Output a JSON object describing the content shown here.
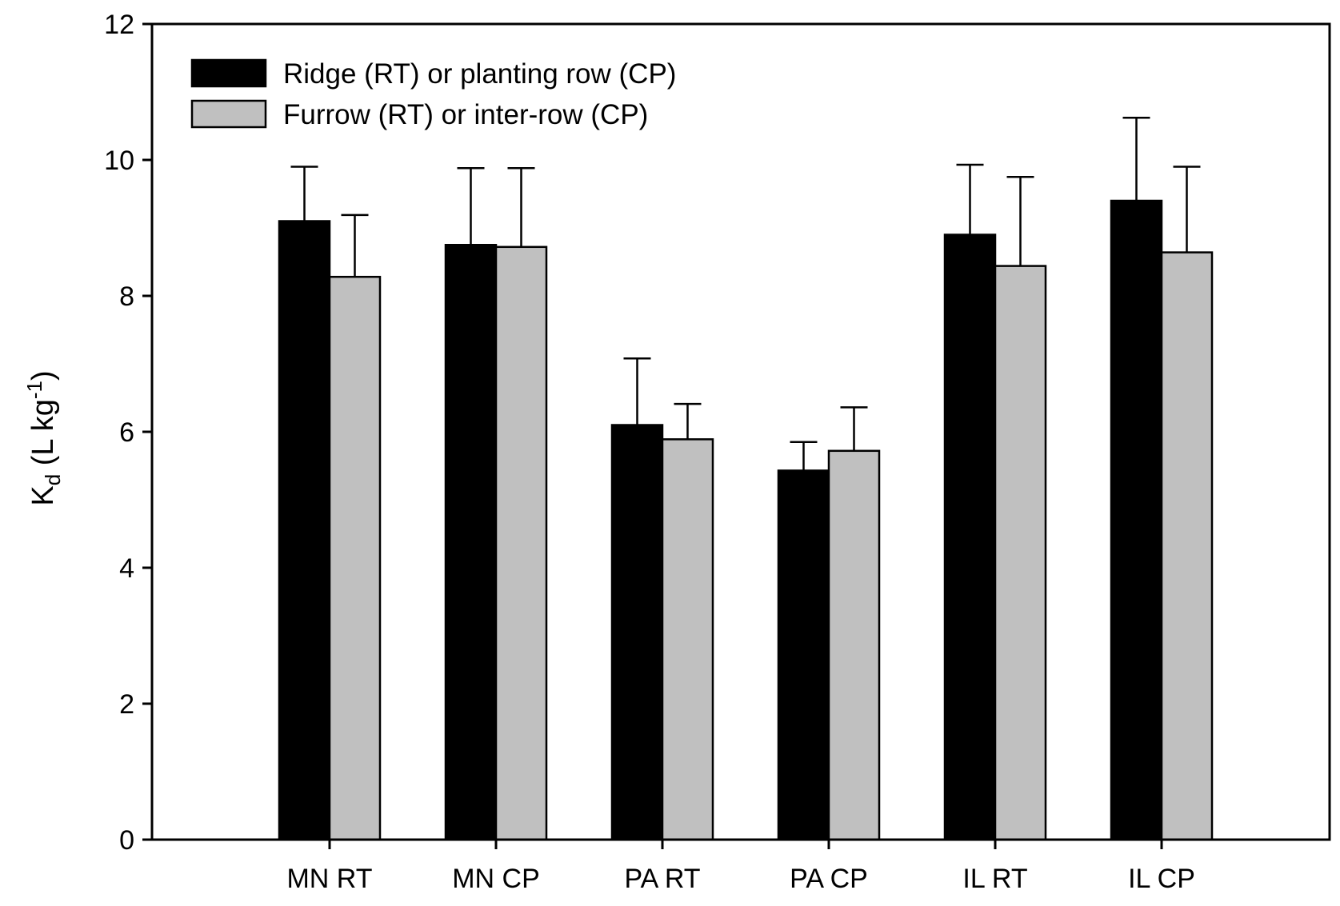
{
  "chart_data": {
    "type": "bar",
    "title": "",
    "xlabel": "",
    "ylabel": {
      "main": "K",
      "subscript": "d",
      "unit_prefix": " (L kg",
      "superscript": "-1",
      "unit_suffix": ")"
    },
    "ylim": [
      0,
      12
    ],
    "yticks": [
      0,
      2,
      4,
      6,
      8,
      10,
      12
    ],
    "categories": [
      "MN RT",
      "MN CP",
      "PA RT",
      "PA CP",
      "IL RT",
      "IL CP"
    ],
    "series": [
      {
        "name": "Ridge (RT) or planting row (CP)",
        "color": "#000000",
        "values": [
          9.1,
          8.75,
          6.1,
          5.43,
          8.9,
          9.4
        ],
        "error": [
          0.8,
          1.13,
          0.98,
          0.42,
          1.03,
          1.22
        ]
      },
      {
        "name": "Furrow (RT) or inter-row (CP)",
        "color": "#c0c0c0",
        "values": [
          8.28,
          8.72,
          5.89,
          5.72,
          8.44,
          8.64
        ],
        "error": [
          0.91,
          1.16,
          0.52,
          0.64,
          1.31,
          1.26
        ]
      }
    ],
    "legend_position": "top-left",
    "grid": false
  }
}
